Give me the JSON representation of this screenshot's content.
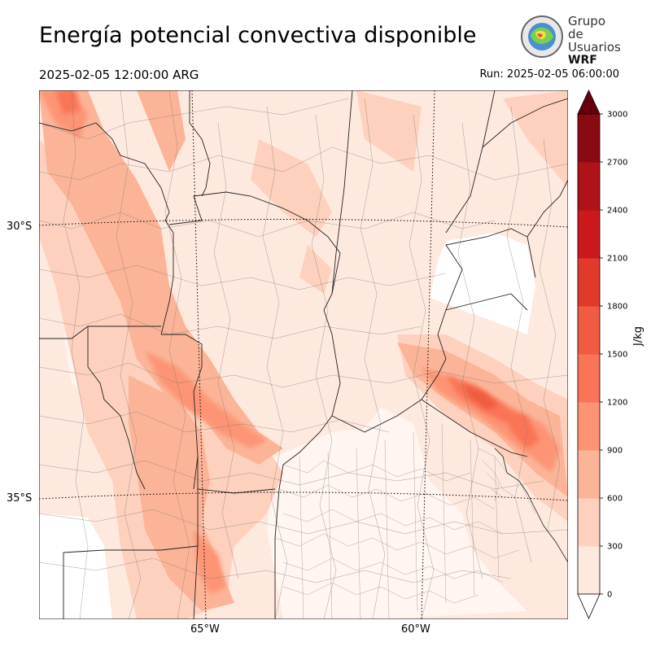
{
  "header": {
    "title": "Energía potencial convectiva disponible",
    "valid_time": "2025-02-05 12:00:00 ARG",
    "run_time": "Run: 2025-02-05 06:00:00"
  },
  "logo": {
    "line1": "Grupo de",
    "line2": "Usuarios",
    "line3": "WRF"
  },
  "map": {
    "lat_labels": [
      "30°S",
      "35°S"
    ],
    "lon_labels": [
      "65°W",
      "60°W"
    ]
  },
  "colorbar": {
    "unit": "J/kg",
    "ticks": [
      "0",
      "300",
      "600",
      "900",
      "1200",
      "1500",
      "1800",
      "2100",
      "2400",
      "2700",
      "3000"
    ],
    "colors": [
      "#fee9df",
      "#fdd1bd",
      "#fcb498",
      "#fc9474",
      "#fa7557",
      "#f05b41",
      "#e1392a",
      "#cb181d",
      "#af1218",
      "#8a0a14"
    ],
    "extend_color": "#67000d"
  }
}
